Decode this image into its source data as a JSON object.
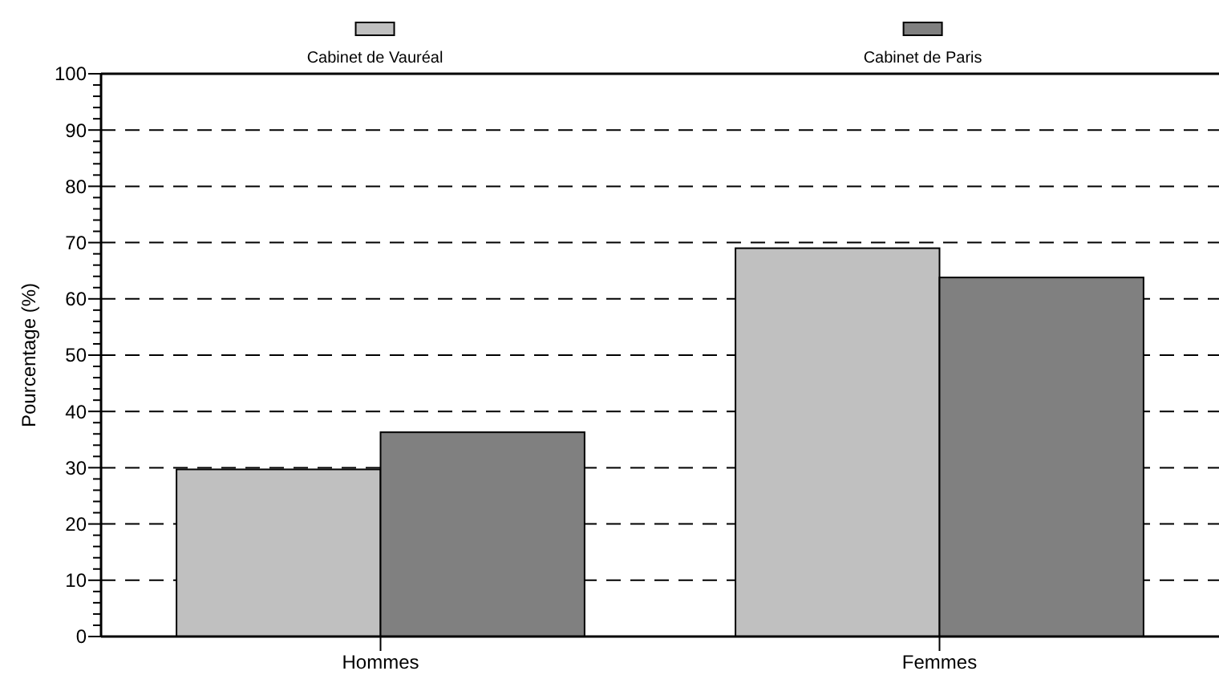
{
  "chart_data": {
    "type": "bar",
    "ylabel": "Pourcentage (%)",
    "categories": [
      "Hommes",
      "Femmes"
    ],
    "series": [
      {
        "name": "Cabinet de Vauréal",
        "color": "#c0c0c0",
        "values": [
          29.7,
          69
        ]
      },
      {
        "name": "Cabinet de Paris",
        "color": "#808080",
        "values": [
          36.3,
          63.8
        ]
      }
    ],
    "ylim": [
      0,
      100
    ],
    "yticks": [
      0,
      {
        "value": 2,
        "label": null
      },
      {
        "value": 4,
        "label": null
      },
      {
        "value": 6,
        "label": null
      },
      {
        "value": 8,
        "label": null
      },
      10,
      {
        "value": 12,
        "label": null
      },
      {
        "value": 14,
        "label": null
      },
      {
        "value": 16,
        "label": null
      },
      {
        "value": 18,
        "label": null
      },
      20,
      {
        "value": 22,
        "label": null
      },
      {
        "value": 24,
        "label": null
      },
      {
        "value": 26,
        "label": null
      },
      {
        "value": 28,
        "label": null
      },
      30,
      {
        "value": 32,
        "label": null
      },
      {
        "value": 34,
        "label": null
      },
      {
        "value": 36,
        "label": null
      },
      {
        "value": 38,
        "label": null
      },
      40,
      {
        "value": 42,
        "label": null
      },
      {
        "value": 44,
        "label": null
      },
      {
        "value": 46,
        "label": null
      },
      {
        "value": 48,
        "label": null
      },
      50,
      {
        "value": 52,
        "label": null
      },
      {
        "value": 54,
        "label": null
      },
      {
        "value": 56,
        "label": null
      },
      {
        "value": 58,
        "label": null
      },
      60,
      {
        "value": 62,
        "label": null
      },
      {
        "value": 64,
        "label": null
      },
      {
        "value": 66,
        "label": null
      },
      {
        "value": 68,
        "label": null
      },
      70,
      {
        "value": 72,
        "label": null
      },
      {
        "value": 74,
        "label": null
      },
      {
        "value": 76,
        "label": null
      },
      {
        "value": 78,
        "label": null
      },
      80,
      {
        "value": 82,
        "label": null
      },
      {
        "value": 84,
        "label": null
      },
      {
        "value": 86,
        "label": null
      },
      {
        "value": 88,
        "label": null
      },
      90,
      {
        "value": 92,
        "label": null
      },
      {
        "value": 94,
        "label": null
      },
      {
        "value": 96,
        "label": null
      },
      {
        "value": 98,
        "label": null
      },
      100
    ],
    "grid": "y",
    "legend": "top"
  }
}
